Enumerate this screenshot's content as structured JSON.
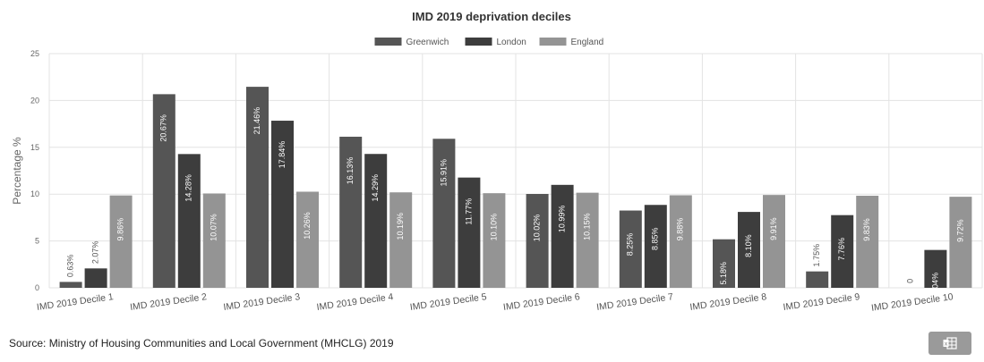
{
  "chart_data": {
    "type": "bar",
    "title": "IMD 2019 deprivation deciles",
    "xlabel": "",
    "ylabel": "Percentage %",
    "ylim": [
      0,
      25
    ],
    "yticks": [
      0,
      5,
      10,
      15,
      20,
      25
    ],
    "grid": true,
    "legend_position": "top",
    "categories": [
      "IMD 2019 Decile 1",
      "IMD 2019 Decile 2",
      "IMD 2019 Decile 3",
      "IMD 2019 Decile 4",
      "IMD 2019 Decile 5",
      "IMD 2019 Decile 6",
      "IMD 2019 Decile 7",
      "IMD 2019 Decile 8",
      "IMD 2019 Decile 9",
      "IMD 2019 Decile 10"
    ],
    "series": [
      {
        "name": "Greenwich",
        "color": "#555555",
        "values": [
          0.63,
          20.67,
          21.46,
          16.13,
          15.91,
          10.02,
          8.25,
          5.18,
          1.75,
          0
        ],
        "labels": [
          "0.63%",
          "20.67%",
          "21.46%",
          "16.13%",
          "15.91%",
          "10.02%",
          "8.25%",
          "5.18%",
          "1.75%",
          "0"
        ]
      },
      {
        "name": "London",
        "color": "#3d3d3d",
        "values": [
          2.07,
          14.28,
          17.84,
          14.29,
          11.77,
          10.99,
          8.85,
          8.1,
          7.76,
          4.04
        ],
        "labels": [
          "2.07%",
          "14.28%",
          "17.84%",
          "14.29%",
          "11.77%",
          "10.99%",
          "8.85%",
          "8.10%",
          "7.76%",
          "4.04%"
        ]
      },
      {
        "name": "England",
        "color": "#949494",
        "values": [
          9.86,
          10.07,
          10.26,
          10.19,
          10.1,
          10.15,
          9.88,
          9.91,
          9.83,
          9.72
        ],
        "labels": [
          "9.86%",
          "10.07%",
          "10.26%",
          "10.19%",
          "10.10%",
          "10.15%",
          "9.88%",
          "9.91%",
          "9.83%",
          "9.72%"
        ]
      }
    ]
  },
  "footer": {
    "source": "Source: Ministry of Housing Communities and Local Government (MHCLG) 2019"
  },
  "export_button": {
    "icon": "excel-export-icon",
    "color": "#9a9a9a"
  }
}
